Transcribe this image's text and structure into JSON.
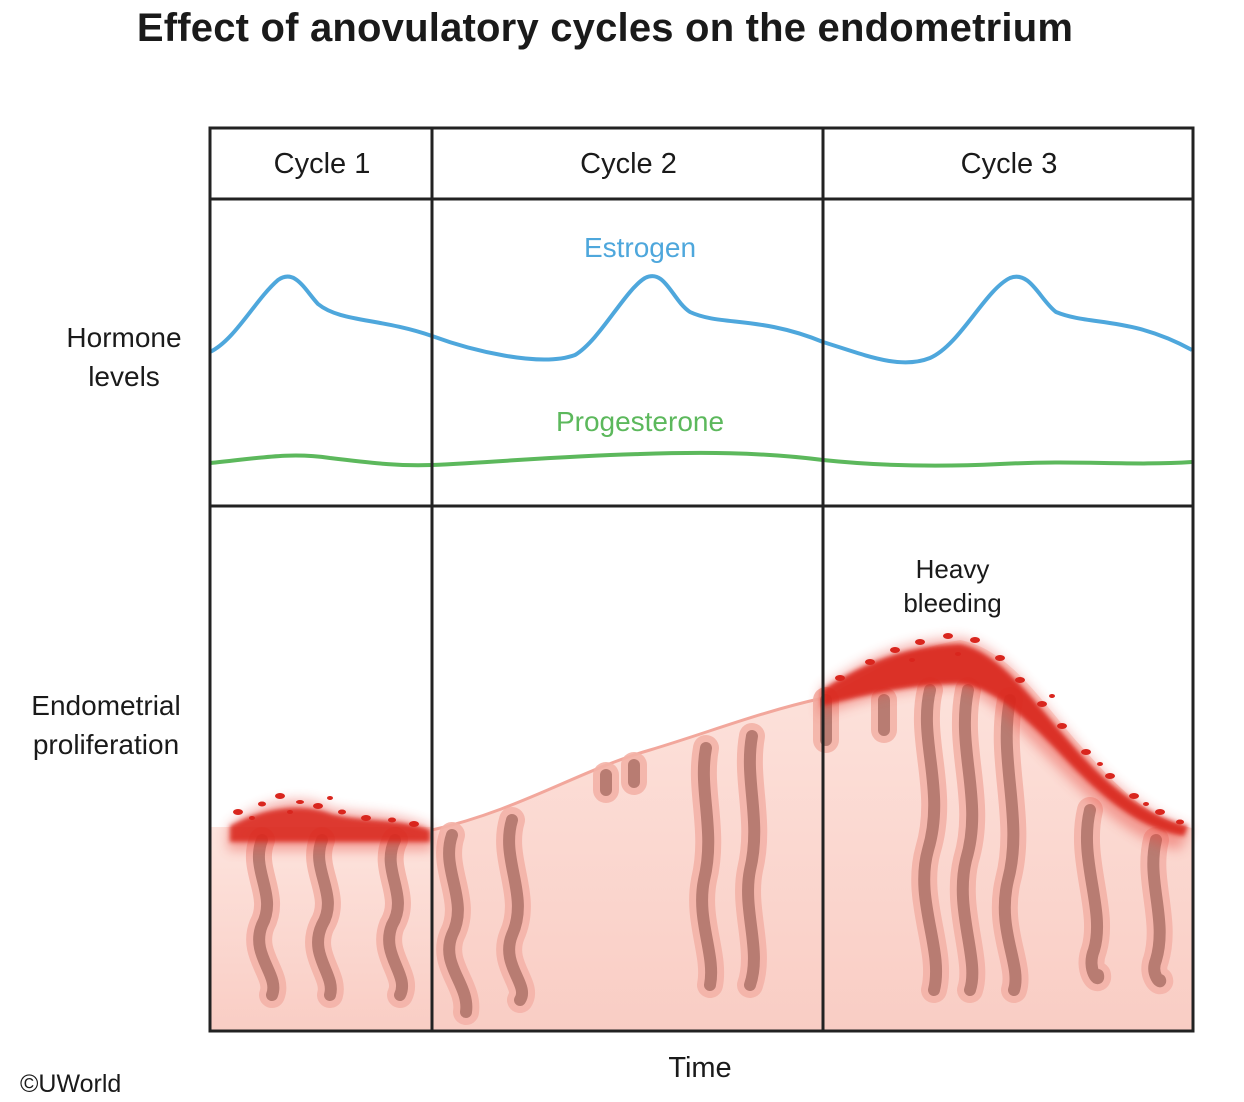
{
  "title": "Effect of anovulatory cycles on the endometrium",
  "rows": {
    "hormones_line1": "Hormone",
    "hormones_line2": "levels",
    "endometrium_line1": "Endometrial",
    "endometrium_line2": "proliferation"
  },
  "cycles": [
    "Cycle 1",
    "Cycle 2",
    "Cycle 3"
  ],
  "hormones": {
    "estrogen": "Estrogen",
    "progesterone": "Progesterone",
    "estrogen_color": "#4ea7dc",
    "progesterone_color": "#5cb85c"
  },
  "annotation": {
    "line1": "Heavy",
    "line2": "bleeding"
  },
  "axis": {
    "x": "Time"
  },
  "copyright": "©UWorld",
  "colors": {
    "tissue": "#fbd7d0",
    "gland": "#b87c72",
    "blood": "#d9251d"
  }
}
